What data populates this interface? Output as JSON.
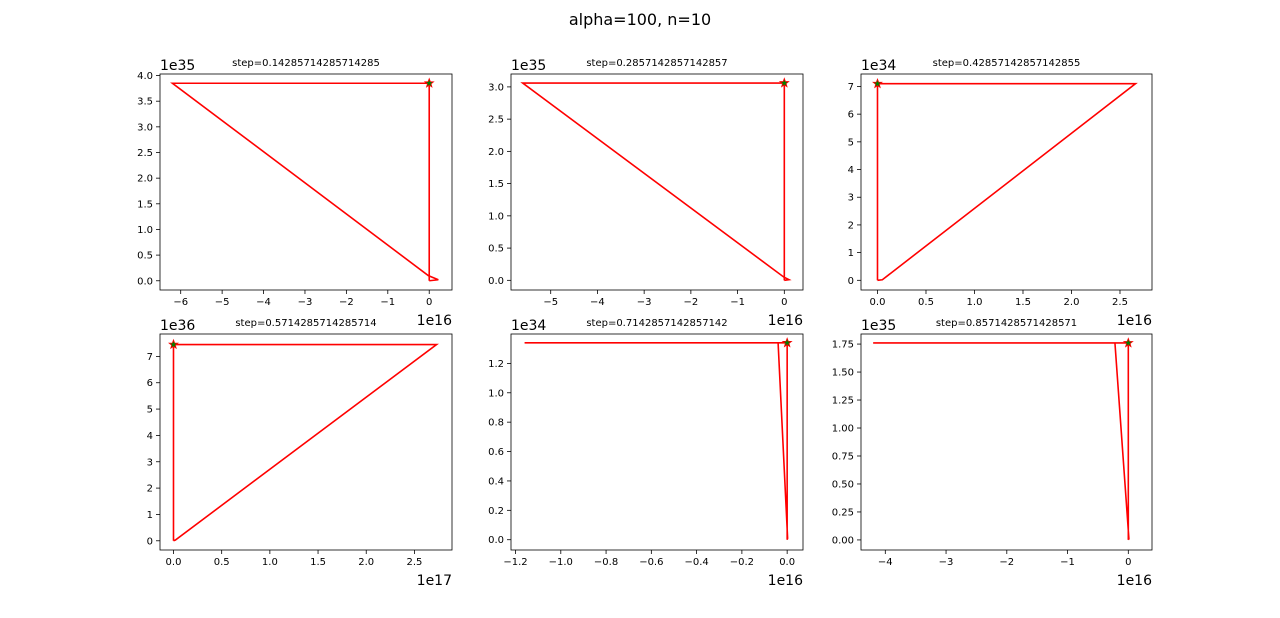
{
  "figure": {
    "suptitle": "alpha=100, n=10",
    "line_color": "#ff0000",
    "marker_face_color": "#008000",
    "marker_edge_color": "#ff0000"
  },
  "chart_data": [
    {
      "type": "line",
      "title": "step=0.14285714285714285",
      "x_offset_label": "1e16",
      "y_offset_label": "1e35",
      "xlim": [
        -6.5,
        0.55
      ],
      "ylim": [
        -0.18,
        4.03
      ],
      "xticks": [
        -6,
        -5,
        -4,
        -3,
        -2,
        -1,
        0
      ],
      "xtick_labels": [
        "−6",
        "−5",
        "−4",
        "−3",
        "−2",
        "−1",
        "0"
      ],
      "yticks": [
        0,
        0.5,
        1,
        1.5,
        2,
        2.5,
        3,
        3.5,
        4
      ],
      "ytick_labels": [
        "0.0",
        "0.5",
        "1.0",
        "1.5",
        "2.0",
        "2.5",
        "3.0",
        "3.5",
        "4.0"
      ],
      "x": [
        0,
        0.22,
        -0.02,
        -6.2,
        0,
        0
      ],
      "y": [
        0,
        0.02,
        0.1,
        3.85,
        3.85,
        0
      ],
      "marker": {
        "x": 0,
        "y": 3.85
      }
    },
    {
      "type": "line",
      "title": "step=0.2857142857142857",
      "x_offset_label": "1e16",
      "y_offset_label": "1e35",
      "xlim": [
        -5.85,
        0.4
      ],
      "ylim": [
        -0.15,
        3.2
      ],
      "xticks": [
        -5,
        -4,
        -3,
        -2,
        -1,
        0
      ],
      "xtick_labels": [
        "−5",
        "−4",
        "−3",
        "−2",
        "−1",
        "0"
      ],
      "yticks": [
        0,
        0.5,
        1,
        1.5,
        2,
        2.5,
        3
      ],
      "ytick_labels": [
        "0.0",
        "0.5",
        "1.0",
        "1.5",
        "2.0",
        "2.5",
        "3.0"
      ],
      "x": [
        0,
        0.1,
        -0.01,
        -5.6,
        0,
        0
      ],
      "y": [
        0,
        0.01,
        0.05,
        3.06,
        3.06,
        0
      ],
      "marker": {
        "x": 0,
        "y": 3.06
      }
    },
    {
      "type": "line",
      "title": "step=0.42857142857142855",
      "x_offset_label": "1e16",
      "y_offset_label": "1e34",
      "xlim": [
        -0.17,
        2.83
      ],
      "ylim": [
        -0.35,
        7.45
      ],
      "xticks": [
        0,
        0.5,
        1,
        1.5,
        2,
        2.5
      ],
      "xtick_labels": [
        "0.0",
        "0.5",
        "1.0",
        "1.5",
        "2.0",
        "2.5"
      ],
      "yticks": [
        0,
        1,
        2,
        3,
        4,
        5,
        6,
        7
      ],
      "ytick_labels": [
        "0",
        "1",
        "2",
        "3",
        "4",
        "5",
        "6",
        "7"
      ],
      "x": [
        0,
        0.05,
        2.66,
        0,
        0
      ],
      "y": [
        0,
        0.02,
        7.1,
        7.1,
        0
      ],
      "marker": {
        "x": 0,
        "y": 7.1
      }
    },
    {
      "type": "line",
      "title": "step=0.5714285714285714",
      "x_offset_label": "1e17",
      "y_offset_label": "1e36",
      "xlim": [
        -0.14,
        2.89
      ],
      "ylim": [
        -0.35,
        7.85
      ],
      "xticks": [
        0,
        0.5,
        1,
        1.5,
        2,
        2.5
      ],
      "xtick_labels": [
        "0.0",
        "0.5",
        "1.0",
        "1.5",
        "2.0",
        "2.5"
      ],
      "yticks": [
        0,
        1,
        2,
        3,
        4,
        5,
        6,
        7
      ],
      "ytick_labels": [
        "0",
        "1",
        "2",
        "3",
        "4",
        "5",
        "6",
        "7"
      ],
      "x": [
        0,
        0.02,
        2.73,
        0,
        0
      ],
      "y": [
        0,
        0.03,
        7.45,
        7.45,
        0
      ],
      "marker": {
        "x": 0,
        "y": 7.45
      }
    },
    {
      "type": "line",
      "title": "step=0.7142857142857142",
      "x_offset_label": "1e16",
      "y_offset_label": "1e34",
      "xlim": [
        -1.22,
        0.07
      ],
      "ylim": [
        -0.07,
        1.4
      ],
      "xticks": [
        -1.2,
        -1.0,
        -0.8,
        -0.6,
        -0.4,
        -0.2,
        0
      ],
      "xtick_labels": [
        "−1.2",
        "−1.0",
        "−0.8",
        "−0.6",
        "−0.4",
        "−0.2",
        "0.0"
      ],
      "yticks": [
        0,
        0.2,
        0.4,
        0.6,
        0.8,
        1.0,
        1.2
      ],
      "ytick_labels": [
        "0.0",
        "0.2",
        "0.4",
        "0.6",
        "0.8",
        "1.0",
        "1.2"
      ],
      "x": [
        0,
        0.002,
        -0.04,
        -1.16,
        0,
        0
      ],
      "y": [
        0,
        0.01,
        1.34,
        1.34,
        1.34,
        0
      ],
      "marker": {
        "x": 0,
        "y": 1.34
      }
    },
    {
      "type": "line",
      "title": "step=0.8571428571428571",
      "x_offset_label": "1e16",
      "y_offset_label": "1e35",
      "xlim": [
        -4.4,
        0.39
      ],
      "ylim": [
        -0.09,
        1.84
      ],
      "xticks": [
        -4,
        -3,
        -2,
        -1,
        0
      ],
      "xtick_labels": [
        "−4",
        "−3",
        "−2",
        "−1",
        "0"
      ],
      "yticks": [
        0,
        0.25,
        0.5,
        0.75,
        1.0,
        1.25,
        1.5,
        1.75
      ],
      "ytick_labels": [
        "0.00",
        "0.25",
        "0.50",
        "0.75",
        "1.00",
        "1.25",
        "1.50",
        "1.75"
      ],
      "x": [
        0,
        0.01,
        -0.22,
        -4.2,
        0,
        0
      ],
      "y": [
        0,
        0.01,
        1.76,
        1.76,
        1.76,
        0
      ],
      "marker": {
        "x": 0,
        "y": 1.76
      }
    }
  ]
}
